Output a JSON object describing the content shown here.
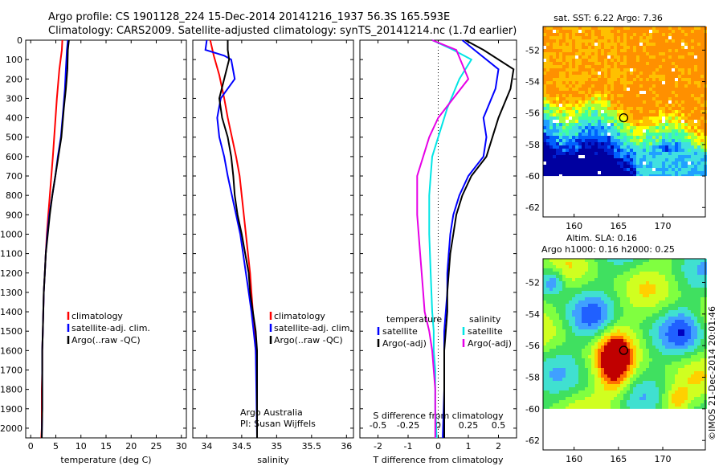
{
  "header": {
    "line1": "Argo profile: CS 1901128_224 15-Dec-2014 20141216_1937 56.3S 165.593E",
    "line2": "Climatology: CARS2009. Satellite-adjusted climatology: synTS_20141214.nc (1.7d earlier)"
  },
  "colors": {
    "climatology": "#ff0000",
    "satellite": "#0000ff",
    "argo": "#000000",
    "sat_salinity": "#00e5e5",
    "argo_salinity": "#e600e6"
  },
  "chart_data": [
    {
      "type": "line",
      "xlabel": "temperature (deg C)",
      "ylabel": "",
      "xlim": [
        -1,
        31
      ],
      "ylim": [
        2050,
        0
      ],
      "xticks": [
        0,
        5,
        10,
        15,
        20,
        25,
        30
      ],
      "yticks": [
        0,
        100,
        200,
        300,
        400,
        500,
        600,
        700,
        800,
        900,
        1000,
        1100,
        1200,
        1300,
        1400,
        1500,
        1600,
        1700,
        1800,
        1900,
        2000
      ],
      "legend": [
        "climatology",
        "satellite-adj. clim.",
        "Argo(..raw -QC)"
      ],
      "series": [
        {
          "name": "climatology",
          "color": "#ff0000",
          "x": [
            6.3,
            6.2,
            5.7,
            5.2,
            4.8,
            4.4,
            4.1,
            3.8,
            3.5,
            3.2,
            3.0,
            2.8,
            2.6,
            2.5,
            2.4,
            2.3,
            2.3,
            2.2,
            2.2,
            2.2,
            2.1,
            2.1
          ],
          "y": [
            0,
            50,
            150,
            300,
            450,
            600,
            700,
            800,
            900,
            1000,
            1100,
            1200,
            1300,
            1400,
            1500,
            1600,
            1700,
            1800,
            1900,
            2000,
            2050,
            2050
          ]
        },
        {
          "name": "satellite-adj. clim.",
          "color": "#0000ff",
          "x": [
            7.4,
            7.2,
            7.0,
            6.8,
            6.5,
            6.0,
            5.4,
            4.9,
            4.3,
            3.7,
            3.3,
            3.0,
            2.8,
            2.6,
            2.5,
            2.4,
            2.3,
            2.3,
            2.3,
            2.2
          ],
          "y": [
            0,
            50,
            150,
            250,
            350,
            500,
            600,
            700,
            800,
            900,
            1000,
            1100,
            1200,
            1300,
            1400,
            1500,
            1600,
            1700,
            1900,
            2050
          ]
        },
        {
          "name": "Argo(..raw -QC)",
          "color": "#000000",
          "x": [
            7.6,
            7.4,
            7.3,
            7.0,
            6.6,
            6.1,
            5.5,
            4.9,
            4.3,
            3.8,
            3.4,
            3.0,
            2.8,
            2.6,
            2.5,
            2.4,
            2.3,
            2.3,
            2.3,
            2.2
          ],
          "y": [
            0,
            50,
            150,
            250,
            350,
            500,
            600,
            700,
            800,
            900,
            1000,
            1100,
            1200,
            1300,
            1400,
            1500,
            1600,
            1700,
            1900,
            2050
          ]
        }
      ]
    },
    {
      "type": "line",
      "xlabel": "salinity",
      "xlim": [
        33.8,
        36.1
      ],
      "ylim": [
        2050,
        0
      ],
      "xticks": [
        34,
        34.5,
        35,
        35.5,
        36
      ],
      "legend": [
        "climatology",
        "satellite-adj. clim.",
        "Argo(..raw -QC)"
      ],
      "series": [
        {
          "name": "climatology",
          "color": "#ff0000",
          "x": [
            34.05,
            34.1,
            34.18,
            34.25,
            34.3,
            34.36,
            34.42,
            34.47,
            34.5,
            34.53,
            34.56,
            34.59,
            34.62,
            34.64,
            34.66,
            34.68,
            34.7,
            34.71,
            34.72,
            34.72
          ],
          "y": [
            0,
            80,
            180,
            300,
            400,
            500,
            600,
            700,
            800,
            900,
            1000,
            1100,
            1200,
            1300,
            1400,
            1500,
            1600,
            1700,
            1900,
            2050
          ]
        },
        {
          "name": "satellite-adj. clim.",
          "color": "#0000ff",
          "x": [
            34.0,
            33.98,
            34.25,
            34.35,
            34.4,
            34.2,
            34.15,
            34.18,
            34.25,
            34.3,
            34.36,
            34.42,
            34.48,
            34.52,
            34.56,
            34.6,
            34.64,
            34.67,
            34.7,
            34.71,
            34.72
          ],
          "y": [
            0,
            50,
            80,
            100,
            200,
            300,
            400,
            500,
            600,
            700,
            800,
            900,
            1000,
            1100,
            1200,
            1300,
            1400,
            1500,
            1600,
            1800,
            2050
          ]
        },
        {
          "name": "Argo(..raw -QC)",
          "color": "#000000",
          "x": [
            34.3,
            34.3,
            34.32,
            34.25,
            34.18,
            34.22,
            34.3,
            34.35,
            34.38,
            34.4,
            34.44,
            34.5,
            34.55,
            34.6,
            34.62,
            34.66,
            34.7,
            34.72,
            34.72
          ],
          "y": [
            0,
            50,
            100,
            200,
            300,
            400,
            500,
            600,
            700,
            800,
            900,
            1000,
            1100,
            1200,
            1300,
            1400,
            1500,
            1600,
            2050
          ]
        }
      ],
      "annotation": [
        "Argo Australia",
        "PI: Susan Wijffels"
      ]
    },
    {
      "type": "line",
      "xlabel": "T difference from climatology",
      "xlabel2": "S difference from climatology",
      "xlim": [
        -2.6,
        2.6
      ],
      "ylim": [
        2050,
        0
      ],
      "xticks": [
        -2,
        -1,
        0,
        1,
        2
      ],
      "xticks2": [
        "-0.5",
        "-0.25",
        "0",
        "0.25",
        "0.5"
      ],
      "legend_temperature": [
        "temperature",
        "satellite",
        "Argo(-adj)"
      ],
      "legend_salinity": [
        "salinity",
        "satellite",
        "Argo(-adj)"
      ],
      "series": [
        {
          "name": "satellite",
          "color": "#0000ff",
          "x": [
            0.8,
            1.2,
            2.0,
            1.9,
            1.5,
            1.6,
            1.5,
            1.0,
            0.7,
            0.5,
            0.4,
            0.35,
            0.3,
            0.3,
            0.25,
            0.2,
            0.2,
            0.2,
            0.15
          ],
          "y": [
            0,
            50,
            150,
            250,
            400,
            500,
            600,
            700,
            800,
            900,
            1000,
            1100,
            1200,
            1300,
            1400,
            1500,
            1600,
            1800,
            2050
          ]
        },
        {
          "name": "Argo(-adj)",
          "color": "#000000",
          "x": [
            0.9,
            1.5,
            2.5,
            2.4,
            2.0,
            1.8,
            1.6,
            1.1,
            0.8,
            0.6,
            0.5,
            0.4,
            0.35,
            0.3,
            0.3,
            0.25,
            0.2,
            0.2,
            0.2
          ],
          "y": [
            0,
            50,
            150,
            250,
            400,
            500,
            600,
            700,
            800,
            900,
            1000,
            1100,
            1200,
            1300,
            1400,
            1500,
            1600,
            1800,
            2050
          ]
        },
        {
          "name": "satellite",
          "color": "#00e5e5",
          "x": [
            -0.2,
            0.5,
            1.1,
            0.7,
            0.3,
            0.0,
            -0.2,
            -0.25,
            -0.3,
            -0.3,
            -0.25,
            -0.2,
            -0.15,
            -0.15,
            -0.1,
            -0.1,
            -0.1,
            -0.05
          ],
          "y": [
            0,
            50,
            100,
            200,
            350,
            500,
            600,
            700,
            800,
            1000,
            1200,
            1400,
            1500,
            1600,
            1700,
            1800,
            1900,
            2050
          ]
        },
        {
          "name": "Argo(-adj)",
          "color": "#e600e6",
          "x": [
            -0.2,
            0.6,
            1.0,
            0.5,
            0.0,
            -0.3,
            -0.5,
            -0.7,
            -0.7,
            -0.6,
            -0.5,
            -0.45,
            -0.3,
            -0.2,
            -0.15,
            -0.1,
            -0.1
          ],
          "y": [
            0,
            50,
            200,
            300,
            400,
            500,
            600,
            700,
            900,
            1100,
            1300,
            1400,
            1500,
            1600,
            1700,
            1800,
            2050
          ]
        }
      ]
    },
    {
      "type": "heatmap",
      "title": "sat. SST: 6.22 Argo: 7.36",
      "xlim": [
        156.5,
        174.8
      ],
      "ylim": [
        -62.6,
        -50.5
      ],
      "xticks": [
        160,
        165,
        170
      ],
      "yticks": [
        -52,
        -54,
        -56,
        -58,
        -60,
        -62
      ],
      "marker": {
        "lon": 165.593,
        "lat": -56.3
      }
    },
    {
      "type": "heatmap",
      "title": "Altim. SLA: 0.16",
      "subtitle": "Argo h1000: 0.16 h2000: 0.25",
      "xlim": [
        156.5,
        174.8
      ],
      "ylim": [
        -62.6,
        -50.5
      ],
      "xticks": [
        160,
        165,
        170
      ],
      "yticks": [
        -52,
        -54,
        -56,
        -58,
        -60,
        -62
      ],
      "marker": {
        "lon": 165.593,
        "lat": -56.3
      }
    }
  ],
  "footer": {
    "stamp": "©IMOS 21-Dec-2014 20:01:46"
  }
}
